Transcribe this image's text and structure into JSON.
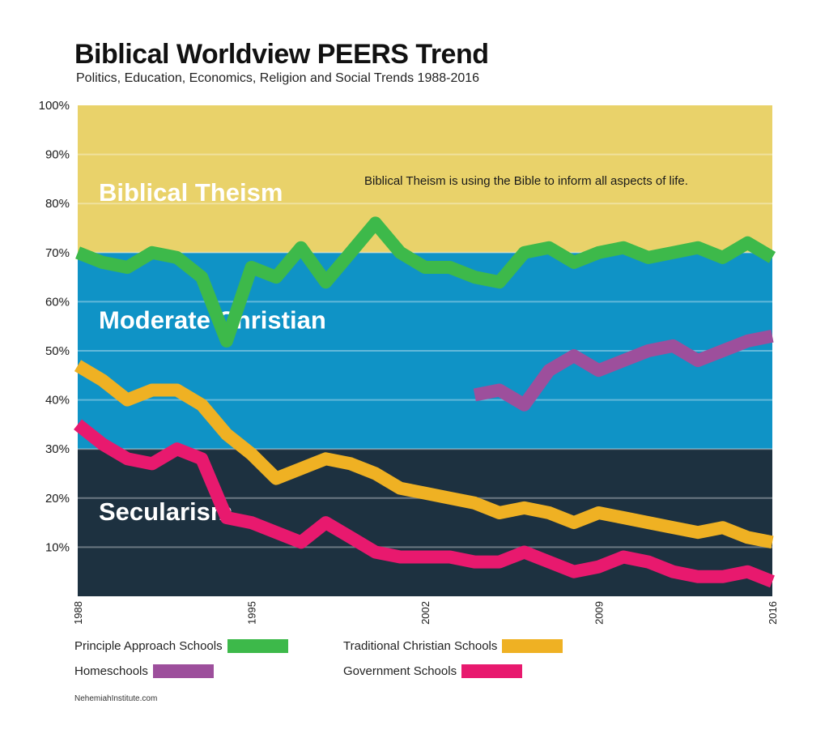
{
  "chart_data": {
    "type": "line",
    "title": "Biblical Worldview PEERS Trend",
    "subtitle": "Politics, Education, Economics, Religion and Social Trends 1988-2016",
    "xlim": [
      1988,
      2016
    ],
    "ylim": [
      0,
      100
    ],
    "x_ticks": [
      1988,
      1995,
      2002,
      2009,
      2016
    ],
    "x_tick_labels": [
      "1988",
      "1995",
      "2002",
      "2009",
      "2016"
    ],
    "y_ticks": [
      10,
      20,
      30,
      40,
      50,
      60,
      70,
      80,
      90,
      100
    ],
    "y_tick_labels": [
      "10%",
      "20%",
      "30%",
      "40%",
      "50%",
      "60%",
      "70%",
      "80%",
      "90%",
      "100%"
    ],
    "bands": [
      {
        "name": "Biblical Theism",
        "from": 70,
        "to": 100,
        "color": "#e9d26a"
      },
      {
        "name": "Moderate Christian",
        "from": 30,
        "to": 70,
        "color": "#0f93c6"
      },
      {
        "name": "Secularism",
        "from": 0,
        "to": 30,
        "color": "#1d3140"
      }
    ],
    "annotation": "Biblical Theism is using the Bible to inform all aspects of life.",
    "series": [
      {
        "name": "Principle Approach Schools",
        "color": "#3db94a",
        "x": [
          1988,
          1989,
          1990,
          1991,
          1992,
          1993,
          1994,
          1995,
          1996,
          1997,
          1998,
          1999,
          2000,
          2001,
          2002,
          2003,
          2004,
          2005,
          2006,
          2007,
          2008,
          2009,
          2010,
          2011,
          2012,
          2013,
          2014,
          2015,
          2016
        ],
        "values": [
          70,
          68,
          67,
          70,
          69,
          65,
          52,
          67,
          65,
          71,
          64,
          70,
          76,
          70,
          67,
          67,
          65,
          64,
          70,
          71,
          68,
          70,
          71,
          69,
          70,
          71,
          69,
          72,
          69
        ]
      },
      {
        "name": "Traditional Christian Schools",
        "color": "#efb123",
        "x": [
          1988,
          1989,
          1990,
          1991,
          1992,
          1993,
          1994,
          1995,
          1996,
          1997,
          1998,
          1999,
          2000,
          2001,
          2002,
          2003,
          2004,
          2005,
          2006,
          2007,
          2008,
          2009,
          2010,
          2011,
          2012,
          2013,
          2014,
          2015,
          2016
        ],
        "values": [
          47,
          44,
          40,
          42,
          42,
          39,
          33,
          29,
          24,
          26,
          28,
          27,
          25,
          22,
          21,
          20,
          19,
          17,
          18,
          17,
          15,
          17,
          16,
          15,
          14,
          13,
          14,
          12,
          11
        ]
      },
      {
        "name": "Homeschools",
        "color": "#9d4f9c",
        "x": [
          2004,
          2005,
          2006,
          2007,
          2008,
          2009,
          2010,
          2011,
          2012,
          2013,
          2014,
          2015,
          2016
        ],
        "values": [
          41,
          42,
          39,
          46,
          49,
          46,
          48,
          50,
          51,
          48,
          50,
          52,
          53
        ]
      },
      {
        "name": "Government Schools",
        "color": "#e8196e",
        "x": [
          1988,
          1989,
          1990,
          1991,
          1992,
          1993,
          1994,
          1995,
          1996,
          1997,
          1998,
          1999,
          2000,
          2001,
          2002,
          2003,
          2004,
          2005,
          2006,
          2007,
          2008,
          2009,
          2010,
          2011,
          2012,
          2013,
          2014,
          2015,
          2016
        ],
        "values": [
          35,
          31,
          28,
          27,
          30,
          28,
          16,
          15,
          13,
          11,
          15,
          12,
          9,
          8,
          8,
          8,
          7,
          7,
          9,
          7,
          5,
          6,
          8,
          7,
          5,
          4,
          4,
          5,
          3
        ]
      }
    ]
  },
  "legend": {
    "items": [
      {
        "label": "Principle Approach Schools",
        "color": "#3db94a"
      },
      {
        "label": "Traditional Christian Schools",
        "color": "#efb123"
      },
      {
        "label": "Homeschools",
        "color": "#9d4f9c"
      },
      {
        "label": "Government Schools",
        "color": "#e8196e"
      }
    ]
  },
  "source": "NehemiahInstitute.com"
}
